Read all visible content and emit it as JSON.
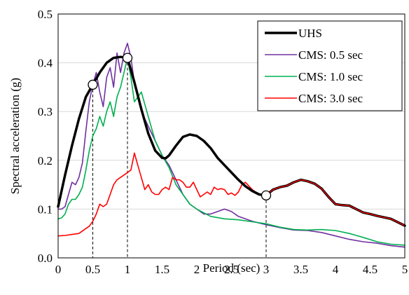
{
  "chart_data": {
    "type": "line",
    "title": "",
    "xlabel": "Period (sec)",
    "ylabel": "Spectral acceleration (g)",
    "xlim": [
      0,
      5
    ],
    "ylim": [
      0,
      0.5
    ],
    "xticks": [
      0,
      0.5,
      1,
      1.5,
      2,
      2.5,
      3,
      3.5,
      4,
      4.5,
      5
    ],
    "xtick_labels": [
      "0",
      "0.5",
      "1",
      "1.5",
      "2",
      "2.5",
      "3",
      "3.5",
      "4",
      "4.5",
      "5"
    ],
    "yticks": [
      0,
      0.1,
      0.2,
      0.3,
      0.4,
      0.5
    ],
    "ytick_labels": [
      "0.0",
      "0.1",
      "0.2",
      "0.3",
      "0.4",
      "0.5"
    ],
    "grid": "horizontal",
    "legend_position": "top-right",
    "series": [
      {
        "name": "UHS",
        "color": "#000000",
        "width": "thick",
        "x": [
          0,
          0.1,
          0.2,
          0.3,
          0.4,
          0.5,
          0.6,
          0.7,
          0.8,
          0.9,
          1.0,
          1.1,
          1.2,
          1.3,
          1.4,
          1.5,
          1.55,
          1.6,
          1.7,
          1.8,
          1.9,
          2.0,
          2.1,
          2.2,
          2.3,
          2.4,
          2.5,
          2.6,
          2.7,
          2.8,
          2.9,
          3.0,
          3.1,
          3.2,
          3.3,
          3.4,
          3.5,
          3.6,
          3.7,
          3.8,
          3.9,
          4.0,
          4.1,
          4.2,
          4.3,
          4.4,
          4.5,
          4.6,
          4.7,
          4.8,
          4.9,
          5.0
        ],
        "y": [
          0.105,
          0.17,
          0.23,
          0.285,
          0.33,
          0.355,
          0.38,
          0.4,
          0.41,
          0.412,
          0.41,
          0.36,
          0.305,
          0.255,
          0.22,
          0.205,
          0.204,
          0.21,
          0.23,
          0.248,
          0.253,
          0.25,
          0.24,
          0.225,
          0.205,
          0.19,
          0.175,
          0.16,
          0.147,
          0.137,
          0.13,
          0.128,
          0.14,
          0.145,
          0.148,
          0.155,
          0.16,
          0.157,
          0.152,
          0.142,
          0.125,
          0.11,
          0.108,
          0.107,
          0.1,
          0.093,
          0.09,
          0.086,
          0.083,
          0.08,
          0.073,
          0.066
        ]
      },
      {
        "name": "CMS: 0.5 sec",
        "color": "#7030A0",
        "width": "thin",
        "x": [
          0,
          0.05,
          0.1,
          0.15,
          0.2,
          0.25,
          0.3,
          0.35,
          0.4,
          0.45,
          0.5,
          0.55,
          0.6,
          0.65,
          0.7,
          0.75,
          0.8,
          0.85,
          0.9,
          0.95,
          1.0,
          1.05,
          1.1,
          1.15,
          1.2,
          1.3,
          1.4,
          1.5,
          1.6,
          1.7,
          1.8,
          1.9,
          2.0,
          2.1,
          2.2,
          2.3,
          2.4,
          2.5,
          2.6,
          2.8,
          3.0,
          3.2,
          3.4,
          3.6,
          3.8,
          4.0,
          4.2,
          4.4,
          4.6,
          4.8,
          5.0
        ],
        "y": [
          0.1,
          0.1,
          0.105,
          0.13,
          0.155,
          0.15,
          0.165,
          0.195,
          0.26,
          0.32,
          0.355,
          0.38,
          0.34,
          0.31,
          0.37,
          0.39,
          0.35,
          0.42,
          0.38,
          0.42,
          0.44,
          0.41,
          0.36,
          0.33,
          0.3,
          0.27,
          0.24,
          0.21,
          0.19,
          0.16,
          0.13,
          0.11,
          0.1,
          0.09,
          0.09,
          0.095,
          0.1,
          0.095,
          0.085,
          0.075,
          0.068,
          0.062,
          0.057,
          0.056,
          0.052,
          0.045,
          0.038,
          0.033,
          0.03,
          0.025,
          0.022
        ]
      },
      {
        "name": "CMS: 1.0 sec",
        "color": "#00B050",
        "width": "thin",
        "x": [
          0,
          0.05,
          0.1,
          0.15,
          0.2,
          0.25,
          0.3,
          0.35,
          0.4,
          0.45,
          0.5,
          0.55,
          0.6,
          0.65,
          0.7,
          0.75,
          0.8,
          0.85,
          0.9,
          0.95,
          1.0,
          1.05,
          1.1,
          1.15,
          1.2,
          1.3,
          1.4,
          1.5,
          1.6,
          1.7,
          1.8,
          1.9,
          2.0,
          2.2,
          2.4,
          2.6,
          2.8,
          3.0,
          3.2,
          3.4,
          3.6,
          3.8,
          4.0,
          4.2,
          4.4,
          4.6,
          4.8,
          5.0
        ],
        "y": [
          0.08,
          0.082,
          0.09,
          0.11,
          0.12,
          0.12,
          0.13,
          0.145,
          0.18,
          0.22,
          0.25,
          0.265,
          0.29,
          0.27,
          0.3,
          0.32,
          0.29,
          0.33,
          0.35,
          0.38,
          0.41,
          0.37,
          0.32,
          0.33,
          0.34,
          0.29,
          0.24,
          0.21,
          0.185,
          0.15,
          0.13,
          0.11,
          0.1,
          0.085,
          0.08,
          0.078,
          0.074,
          0.07,
          0.063,
          0.058,
          0.057,
          0.058,
          0.056,
          0.05,
          0.042,
          0.033,
          0.028,
          0.026
        ]
      },
      {
        "name": "CMS: 3.0 sec",
        "color": "#FF0000",
        "width": "thin",
        "x": [
          0,
          0.1,
          0.2,
          0.3,
          0.4,
          0.45,
          0.5,
          0.55,
          0.6,
          0.65,
          0.7,
          0.75,
          0.8,
          0.85,
          0.9,
          0.95,
          1.0,
          1.05,
          1.1,
          1.15,
          1.2,
          1.25,
          1.3,
          1.35,
          1.4,
          1.45,
          1.5,
          1.55,
          1.6,
          1.65,
          1.7,
          1.75,
          1.8,
          1.85,
          1.9,
          1.95,
          2.0,
          2.05,
          2.1,
          2.15,
          2.2,
          2.25,
          2.3,
          2.35,
          2.4,
          2.45,
          2.5,
          2.55,
          2.6,
          2.65,
          2.7,
          2.8,
          2.9,
          3.0,
          3.1,
          3.2,
          3.3,
          3.4,
          3.5,
          3.6,
          3.7,
          3.8,
          3.9,
          4.0,
          4.1,
          4.2,
          4.3,
          4.4,
          4.5,
          4.6,
          4.7,
          4.8,
          4.9,
          5.0
        ],
        "y": [
          0.045,
          0.046,
          0.048,
          0.05,
          0.06,
          0.065,
          0.075,
          0.09,
          0.11,
          0.105,
          0.11,
          0.13,
          0.15,
          0.16,
          0.165,
          0.17,
          0.175,
          0.18,
          0.215,
          0.19,
          0.165,
          0.14,
          0.15,
          0.135,
          0.13,
          0.13,
          0.14,
          0.145,
          0.14,
          0.165,
          0.16,
          0.16,
          0.155,
          0.145,
          0.145,
          0.155,
          0.14,
          0.125,
          0.13,
          0.135,
          0.13,
          0.145,
          0.14,
          0.142,
          0.14,
          0.13,
          0.133,
          0.128,
          0.135,
          0.15,
          0.155,
          0.14,
          0.13,
          0.128,
          0.14,
          0.145,
          0.148,
          0.155,
          0.16,
          0.157,
          0.152,
          0.142,
          0.125,
          0.11,
          0.108,
          0.107,
          0.1,
          0.093,
          0.09,
          0.086,
          0.083,
          0.08,
          0.073,
          0.066
        ]
      }
    ],
    "markers": [
      {
        "x": 0.5,
        "y": 0.355
      },
      {
        "x": 1.0,
        "y": 0.41
      },
      {
        "x": 3.0,
        "y": 0.128
      }
    ]
  }
}
